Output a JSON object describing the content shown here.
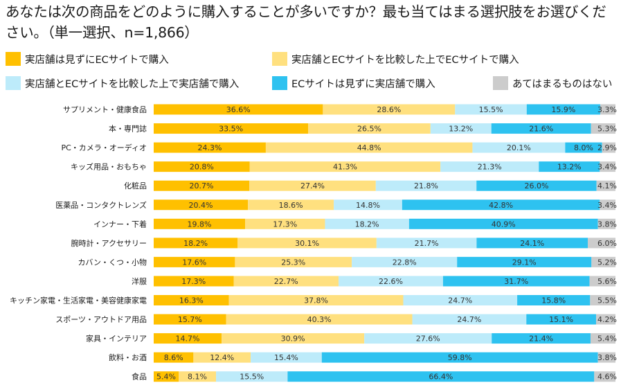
{
  "title": "あなたは次の商品をどのように購入することが多いですか？最も当てはまる選択肢をお選びください。（単一選択、n=1,866）",
  "colors": [
    "#FFC000",
    "#FFE07F",
    "#BDEBFA",
    "#2EC2F0",
    "#CCCCCC"
  ],
  "chart_data": {
    "type": "bar",
    "orientation": "horizontal",
    "stacked": true,
    "percent": true,
    "title": "あなたは次の商品をどのように購入することが多いですか？最も当てはまる選択肢をお選びください。（単一選択、n=1,866）",
    "xlabel": "",
    "ylabel": "",
    "xlim": [
      0,
      100
    ],
    "grid": false,
    "legend": "top",
    "categories": [
      "サプリメント・健康食品",
      "本・専門誌",
      "PC・カメラ・オーディオ",
      "キッズ用品・おもちゃ",
      "化粧品",
      "医薬品・コンタクトレンズ",
      "インナー・下着",
      "腕時計・アクセサリー",
      "カバン・くつ・小物",
      "洋服",
      "キッチン家電・生活家電・美容健康家電",
      "スポーツ・アウトドア用品",
      "家具・インテリア",
      "飲料・お酒",
      "食品"
    ],
    "series": [
      {
        "name": "実店舗は見ずにECサイトで購入",
        "values": [
          36.6,
          33.5,
          24.3,
          20.8,
          20.7,
          20.4,
          19.8,
          18.2,
          17.6,
          17.3,
          16.3,
          15.7,
          14.7,
          8.6,
          5.4
        ]
      },
      {
        "name": "実店舗とECサイトを比較した上でECサイトで購入",
        "values": [
          28.6,
          26.5,
          44.8,
          41.3,
          27.4,
          18.6,
          17.3,
          30.1,
          25.3,
          22.7,
          37.8,
          40.3,
          30.9,
          12.4,
          8.1
        ]
      },
      {
        "name": "実店舗とECサイトを比較した上で実店舗で購入",
        "values": [
          15.5,
          13.2,
          20.1,
          21.3,
          21.8,
          14.8,
          18.2,
          21.7,
          22.8,
          22.6,
          24.7,
          24.7,
          27.6,
          15.4,
          15.5
        ]
      },
      {
        "name": "ECサイトは見ずに実店舗で購入",
        "values": [
          15.9,
          21.6,
          8.0,
          13.2,
          26.0,
          42.8,
          40.9,
          24.1,
          29.1,
          31.7,
          15.8,
          15.1,
          21.4,
          59.8,
          66.4
        ]
      },
      {
        "name": "あてはまるものはない",
        "values": [
          3.3,
          5.3,
          2.9,
          3.4,
          4.1,
          3.4,
          3.8,
          6.0,
          5.2,
          5.6,
          5.5,
          4.2,
          5.4,
          3.8,
          4.6
        ]
      }
    ]
  }
}
